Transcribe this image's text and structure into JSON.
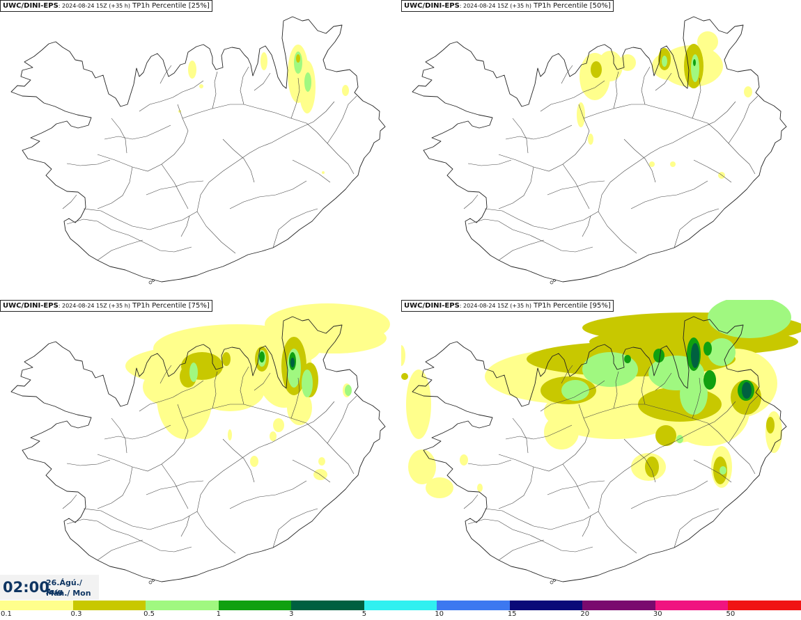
{
  "panels": [
    {
      "source": "UWC/DINI-EPS",
      "run": ": 2024-08-24 15Z (+35 h)",
      "field": " TP1h Percentile [25%]",
      "percentile": 25
    },
    {
      "source": "UWC/DINI-EPS",
      "run": ": 2024-08-24 15Z (+35 h)",
      "field": " TP1h Percentile [50%]",
      "percentile": 50
    },
    {
      "source": "UWC/DINI-EPS",
      "run": ": 2024-08-24 15Z (+35 h)",
      "field": " TP1h Percentile [75%]",
      "percentile": 75
    },
    {
      "source": "UWC/DINI-EPS",
      "run": ": 2024-08-24 15Z (+35 h)",
      "field": " TP1h Percentile [95%]",
      "percentile": 95
    }
  ],
  "valid_time": {
    "clock": "02:00",
    "date_line1": "26.Ágú./ Aug",
    "date_line2": "Mán./ Mon"
  },
  "legend": {
    "colors": [
      "#ffff8c",
      "#c8c800",
      "#a0f880",
      "#10a010",
      "#006040",
      "#30f0f0",
      "#3c78f0",
      "#0a0a78",
      "#7a0a6e",
      "#f01480",
      "#f01414"
    ],
    "ticks": [
      "0.1",
      "0.3",
      "0.5",
      "1",
      "3",
      "5",
      "10",
      "15",
      "20",
      "30",
      "50"
    ]
  }
}
